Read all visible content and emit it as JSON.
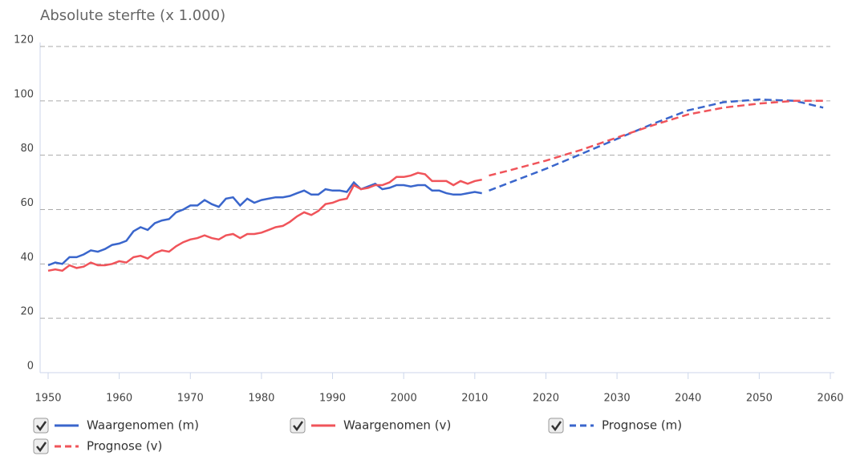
{
  "chart_data": {
    "type": "line",
    "title": "Absolute sterfte (x 1.000)",
    "x": [
      1950,
      1951,
      1952,
      1953,
      1954,
      1955,
      1956,
      1957,
      1958,
      1959,
      1960,
      1961,
      1962,
      1963,
      1964,
      1965,
      1966,
      1967,
      1968,
      1969,
      1970,
      1971,
      1972,
      1973,
      1974,
      1975,
      1976,
      1977,
      1978,
      1979,
      1980,
      1981,
      1982,
      1983,
      1984,
      1985,
      1986,
      1987,
      1988,
      1989,
      1990,
      1991,
      1992,
      1993,
      1994,
      1995,
      1996,
      1997,
      1998,
      1999,
      2000,
      2001,
      2002,
      2003,
      2004,
      2005,
      2006,
      2007,
      2008,
      2009,
      2010,
      2011,
      2012,
      2015,
      2020,
      2025,
      2030,
      2035,
      2040,
      2045,
      2050,
      2055,
      2059
    ],
    "series": [
      {
        "name": "Waargenomen (m)",
        "color": "#3a66cc",
        "style": "solid",
        "values": [
          39.5,
          40.5,
          40,
          42.5,
          42.5,
          43.5,
          45,
          44.5,
          45.5,
          47,
          47.5,
          48.5,
          52,
          53.5,
          52.5,
          55,
          56,
          56.5,
          59,
          60,
          61.5,
          61.5,
          63.5,
          62,
          61,
          64,
          64.5,
          61.5,
          64,
          62.5,
          63.5,
          64,
          64.5,
          64.5,
          65,
          66,
          67,
          65.5,
          65.5,
          67.5,
          67,
          67,
          66.5,
          70,
          67.5,
          68.5,
          69.5,
          67.5,
          68,
          69,
          69,
          68.5,
          69,
          69,
          67,
          67,
          66,
          65.5,
          65.5,
          66,
          66.5,
          66,
          null,
          null,
          null,
          null,
          null,
          null,
          null,
          null,
          null,
          null,
          null
        ]
      },
      {
        "name": "Waargenomen (v)",
        "color": "#f0545a",
        "style": "solid",
        "values": [
          37.5,
          38,
          37.5,
          39.5,
          38.5,
          39,
          40.5,
          39.5,
          39.5,
          40,
          41,
          40.5,
          42.5,
          43,
          42,
          44,
          45,
          44.5,
          46.5,
          48,
          49,
          49.5,
          50.5,
          49.5,
          49,
          50.5,
          51,
          49.5,
          51,
          51,
          51.5,
          52.5,
          53.5,
          54,
          55.5,
          57.5,
          59,
          58,
          59.5,
          62,
          62.5,
          63.5,
          64,
          69,
          67.5,
          68,
          69,
          69,
          70,
          72,
          72,
          72.5,
          73.5,
          73,
          70.5,
          70.5,
          70.5,
          69,
          70.5,
          69.5,
          70.5,
          71,
          null,
          null,
          null,
          null,
          null,
          null,
          null,
          null,
          null,
          null,
          null
        ]
      },
      {
        "name": "Prognose (m)",
        "color": "#3a66cc",
        "style": "dashed",
        "values": [
          null,
          null,
          null,
          null,
          null,
          null,
          null,
          null,
          null,
          null,
          null,
          null,
          null,
          null,
          null,
          null,
          null,
          null,
          null,
          null,
          null,
          null,
          null,
          null,
          null,
          null,
          null,
          null,
          null,
          null,
          null,
          null,
          null,
          null,
          null,
          null,
          null,
          null,
          null,
          null,
          null,
          null,
          null,
          null,
          null,
          null,
          null,
          null,
          null,
          null,
          null,
          null,
          null,
          null,
          null,
          null,
          null,
          null,
          null,
          null,
          null,
          null,
          67,
          70,
          75,
          80.5,
          86,
          91.5,
          96.5,
          99.5,
          100.5,
          100,
          97.5
        ]
      },
      {
        "name": "Prognose (v)",
        "color": "#f0545a",
        "style": "dashed",
        "values": [
          null,
          null,
          null,
          null,
          null,
          null,
          null,
          null,
          null,
          null,
          null,
          null,
          null,
          null,
          null,
          null,
          null,
          null,
          null,
          null,
          null,
          null,
          null,
          null,
          null,
          null,
          null,
          null,
          null,
          null,
          null,
          null,
          null,
          null,
          null,
          null,
          null,
          null,
          null,
          null,
          null,
          null,
          null,
          null,
          null,
          null,
          null,
          null,
          null,
          null,
          null,
          null,
          null,
          null,
          null,
          null,
          null,
          null,
          null,
          null,
          null,
          null,
          72.5,
          74.5,
          78,
          82,
          86.5,
          91,
          95,
          97.5,
          99,
          100,
          100
        ]
      }
    ],
    "xlim": [
      1950,
      2060
    ],
    "xticks": [
      1950,
      1960,
      1970,
      1980,
      1990,
      2000,
      2010,
      2020,
      2030,
      2040,
      2050,
      2060
    ],
    "ylim": [
      0,
      120
    ],
    "yticks": [
      0,
      20,
      40,
      60,
      80,
      100,
      120
    ],
    "grid": true
  }
}
